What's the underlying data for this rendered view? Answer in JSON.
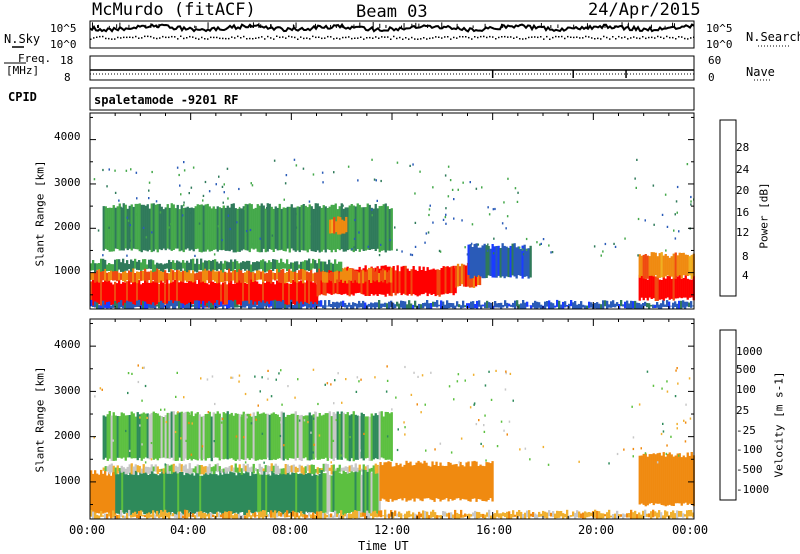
{
  "header": {
    "title": "McMurdo (fitACF)",
    "beam": "Beam 03",
    "date": "24/Apr/2015"
  },
  "top_panels": {
    "nsky_label": "N.Sky",
    "nsky_ticks": [
      "10^5",
      "10^0"
    ],
    "nsearch_label": "N.Search",
    "nsearch_ticks": [
      "10^5",
      "10^0"
    ],
    "freq_label_1": "Freq.",
    "freq_label_2": "[MHz]",
    "freq_ticks": [
      "18",
      "8"
    ],
    "nave_label": "Nave",
    "nave_ticks": [
      "60",
      "0"
    ],
    "cpid_label": "CPID",
    "cpid_value": "spaletamode -9201 RF"
  },
  "axes": {
    "x_ticks": [
      "00:00",
      "04:00",
      "08:00",
      "12:00",
      "16:00",
      "20:00",
      "00:00"
    ],
    "x_label": "Time UT",
    "y_label": "Slant Range [km]",
    "y_ticks": [
      "1000",
      "2000",
      "3000",
      "4000"
    ]
  },
  "colorbars": {
    "power": {
      "label": "Power [dB]",
      "ticks": [
        "4",
        "8",
        "12",
        "16",
        "20",
        "24",
        "28"
      ],
      "colors": [
        "#1a3cff",
        "#2a5bb8",
        "#2f7a5a",
        "#44a84a",
        "#f0b020",
        "#f08a10",
        "#f04a10",
        "#ff0000"
      ]
    },
    "velocity": {
      "label": "Velocity [m s-1]",
      "ticks": [
        "1000",
        "500",
        "100",
        "25",
        "-25",
        "-100",
        "-500",
        "-1000"
      ],
      "colors": [
        "#2040c0",
        "#2f6aa0",
        "#2e8a5a",
        "#5cc040",
        "#c8c8c8",
        "#f0b030",
        "#f08a10",
        "#f04010",
        "#ff0000"
      ]
    }
  },
  "chart_data": [
    {
      "type": "heatmap",
      "title": "Power",
      "xlabel": "Time UT",
      "ylabel": "Slant Range [km]",
      "xlim": [
        0,
        24
      ],
      "ylim": [
        180,
        4600
      ],
      "zlabel": "Power [dB]",
      "zlim": [
        0,
        32
      ],
      "blocks": [
        {
          "t0": 0.0,
          "t1": 9.0,
          "r0": 250,
          "r1": 800,
          "z": 30
        },
        {
          "t0": 9.0,
          "t1": 14.5,
          "r0": 500,
          "r1": 1100,
          "z": 30
        },
        {
          "t0": 14.5,
          "t1": 15.5,
          "r0": 700,
          "r1": 1200,
          "z": 26
        },
        {
          "t0": 0.0,
          "t1": 12.0,
          "r0": 800,
          "r1": 1050,
          "z": 24
        },
        {
          "t0": 0.0,
          "t1": 10.0,
          "r0": 1050,
          "r1": 1250,
          "z": 12
        },
        {
          "t0": 15.0,
          "t1": 17.5,
          "r0": 900,
          "r1": 1600,
          "z": 6
        },
        {
          "t0": 21.8,
          "t1": 24.0,
          "r0": 400,
          "r1": 900,
          "z": 30
        },
        {
          "t0": 21.8,
          "t1": 24.0,
          "r0": 900,
          "r1": 1400,
          "z": 22
        },
        {
          "t0": 0.5,
          "t1": 12.0,
          "r0": 1500,
          "r1": 2500,
          "z": 12
        },
        {
          "t0": 9.5,
          "t1": 10.2,
          "r0": 1900,
          "r1": 2200,
          "z": 22
        },
        {
          "t0": 0.0,
          "t1": 24.0,
          "r0": 200,
          "r1": 320,
          "z": 6
        }
      ]
    },
    {
      "type": "heatmap",
      "title": "Velocity",
      "xlabel": "Time UT",
      "ylabel": "Slant Range [km]",
      "xlim": [
        0,
        24
      ],
      "ylim": [
        180,
        4600
      ],
      "zlabel": "Velocity [m s-1]",
      "zlim": [
        -1000,
        1000
      ],
      "blocks": [
        {
          "t0": 0.0,
          "t1": 1.0,
          "r0": 300,
          "r1": 1200,
          "z": -300
        },
        {
          "t0": 1.0,
          "t1": 9.0,
          "r0": 300,
          "r1": 1200,
          "z": 150
        },
        {
          "t0": 0.5,
          "t1": 12.0,
          "r0": 1200,
          "r1": 1350,
          "z": 0
        },
        {
          "t0": 9.0,
          "t1": 11.5,
          "r0": 300,
          "r1": 1200,
          "z": 60
        },
        {
          "t0": 11.5,
          "t1": 16.0,
          "r0": 600,
          "r1": 1400,
          "z": -250
        },
        {
          "t0": 21.8,
          "t1": 24.0,
          "r0": 500,
          "r1": 1600,
          "z": -300
        },
        {
          "t0": 0.5,
          "t1": 12.0,
          "r0": 1500,
          "r1": 2500,
          "z": 60
        },
        {
          "t0": 0.0,
          "t1": 24.0,
          "r0": 200,
          "r1": 320,
          "z": -60
        }
      ]
    }
  ]
}
